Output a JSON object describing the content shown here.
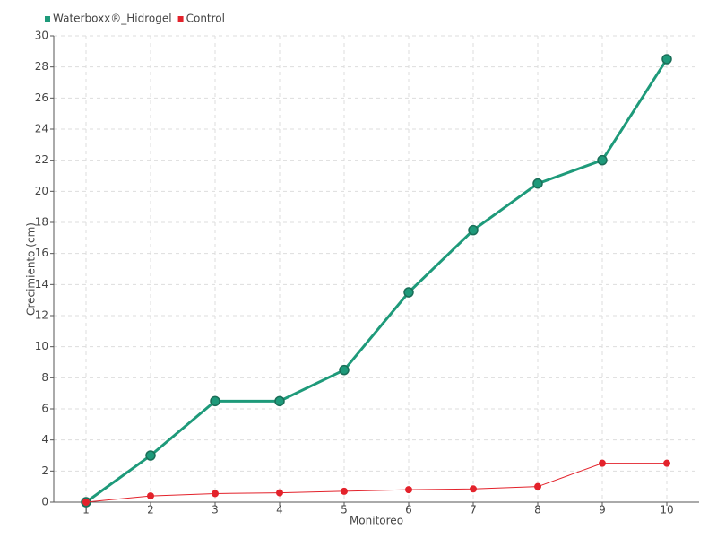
{
  "chart_data": {
    "type": "line",
    "x_label": "Monitoreo",
    "y_label": "Crecimiento (cm)",
    "categories": [
      "1",
      "2",
      "3",
      "4",
      "5",
      "6",
      "7",
      "8",
      "9",
      "10"
    ],
    "series": [
      {
        "name": "Waterboxx®_Hidrogel",
        "color": "#1e9a7a",
        "values": [
          0,
          3,
          6.5,
          6.5,
          8.5,
          13.5,
          17.5,
          20.5,
          22,
          28.5
        ]
      },
      {
        "name": "Control",
        "color": "#e3222b",
        "values": [
          0,
          0.4,
          0.55,
          0.6,
          0.7,
          0.8,
          0.85,
          1.0,
          2.5,
          2.5
        ]
      }
    ],
    "ylim": [
      0,
      30
    ],
    "yticks": [
      0,
      2,
      4,
      6,
      8,
      10,
      12,
      14,
      16,
      18,
      20,
      22,
      24,
      26,
      28,
      30
    ],
    "grid": true,
    "legend": "top-left"
  }
}
